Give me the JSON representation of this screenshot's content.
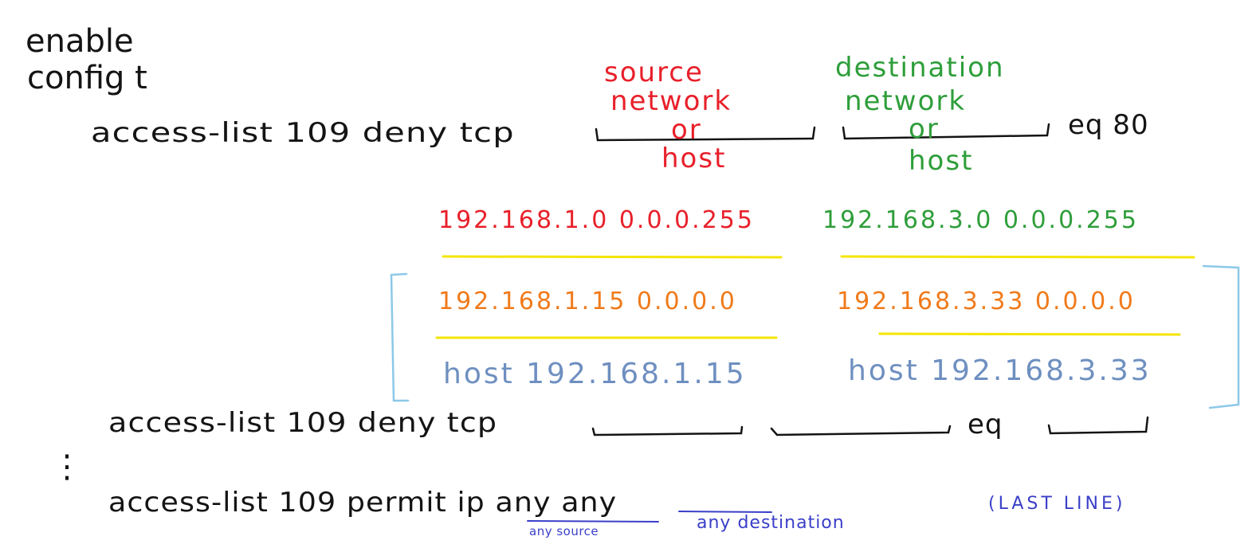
{
  "commands": {
    "enable": "enable",
    "config": "config t",
    "acl_line1": {
      "prefix": "access-list 109 deny tcp",
      "suffix": "eq 80"
    },
    "acl_line2": {
      "prefix": "access-list 109 deny tcp",
      "suffix": "eq"
    },
    "ellipsis": "⋮",
    "acl_last": {
      "text": "access-list 109 permit ip any any",
      "annotation": "(LAST LINE)"
    }
  },
  "labels": {
    "source": [
      "source",
      "network",
      "or",
      "host"
    ],
    "destination": [
      "destination",
      "network",
      "or",
      "host"
    ],
    "any_source": "any source",
    "any_destination": "any destination"
  },
  "examples": {
    "network": {
      "source": "192.168.1.0 0.0.0.255",
      "destination": "192.168.3.0 0.0.0.255"
    },
    "wildcard_host": {
      "source": "192.168.1.15 0.0.0.0",
      "destination": "192.168.3.33 0.0.0.0"
    },
    "host_keyword": {
      "source": "host 192.168.1.15",
      "destination": "host 192.168.3.33"
    }
  },
  "colors": {
    "ink": "#141414",
    "source": "#e8202a",
    "destination": "#2e9e3a",
    "wildcard": "#f07a1a",
    "host_keyword": "#6e8fc0",
    "highlight": "#f5e400",
    "bracket": "#8cc8e8",
    "annotation": "#3a3fc8"
  }
}
